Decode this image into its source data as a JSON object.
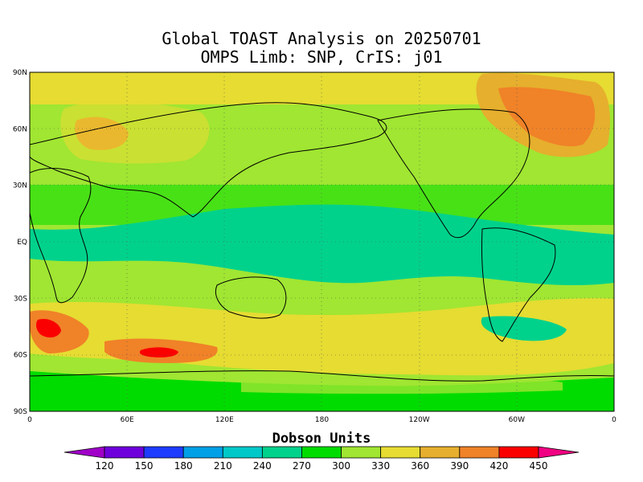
{
  "title": {
    "line1": "Global TOAST Analysis on 20250701",
    "line2": "OMPS Limb: SNP,  CrIS: j01"
  },
  "axes": {
    "x_ticks": [
      "0",
      "60E",
      "120E",
      "180",
      "120W",
      "60W",
      "0"
    ],
    "y_ticks": [
      "90N",
      "60N",
      "30N",
      "EQ",
      "30S",
      "60S",
      "90S"
    ]
  },
  "colorbar": {
    "title": "Dobson Units",
    "ticks": [
      "120",
      "150",
      "180",
      "210",
      "240",
      "270",
      "300",
      "330",
      "360",
      "390",
      "420",
      "450"
    ],
    "colors": [
      "#a000c8",
      "#6e00dc",
      "#1e3cff",
      "#00a0e6",
      "#00c8c8",
      "#00d28c",
      "#00dc00",
      "#a0e632",
      "#e6dc32",
      "#e6af2d",
      "#f08228",
      "#fa0000",
      "#f00082"
    ]
  },
  "map": {
    "lon_range": [
      0,
      360
    ],
    "lat_range": [
      -90,
      90
    ],
    "gridlines": "dotted",
    "regions": [
      {
        "name": "tropical-band",
        "level": 270
      },
      {
        "name": "arctic-high",
        "level": 390
      },
      {
        "name": "southern-ring-high",
        "level": 420
      },
      {
        "name": "antarctic-low",
        "level": 300
      }
    ]
  }
}
